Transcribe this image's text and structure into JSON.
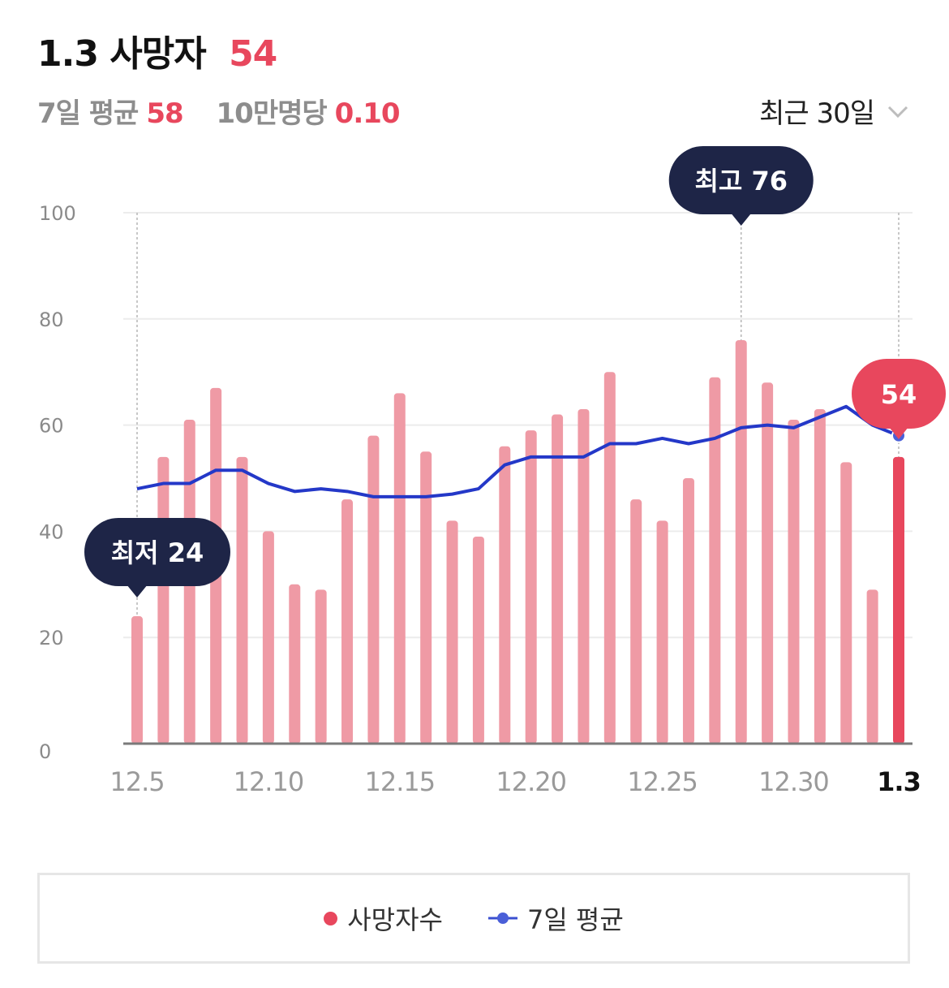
{
  "header": {
    "date": "1.3",
    "title_label": "사망자",
    "today_value": "54",
    "avg_label": "7일 평균",
    "avg_value": "58",
    "per100k_label": "10만명당",
    "per100k_value": "0.10"
  },
  "period_select": {
    "label": "최근 30일",
    "icon": "chevron-down-icon"
  },
  "colors": {
    "bar": "#ef9aa5",
    "bar_latest": "#e8475d",
    "avg_line": "#2438c8",
    "tooltip_bg": "#1e2547",
    "accent": "#e8475d"
  },
  "chart_data": {
    "type": "bar",
    "categories": [
      "12.5",
      "12.6",
      "12.7",
      "12.8",
      "12.9",
      "12.10",
      "12.11",
      "12.12",
      "12.13",
      "12.14",
      "12.15",
      "12.16",
      "12.17",
      "12.18",
      "12.19",
      "12.20",
      "12.21",
      "12.22",
      "12.23",
      "12.24",
      "12.25",
      "12.26",
      "12.27",
      "12.28",
      "12.29",
      "12.30",
      "12.31",
      "1.1",
      "1.2",
      "1.3"
    ],
    "x_tick_labels": [
      "12.5",
      "12.10",
      "12.15",
      "12.20",
      "12.25",
      "12.30",
      "1.3"
    ],
    "series": [
      {
        "name": "사망자수",
        "type": "bar",
        "values": [
          24,
          54,
          61,
          67,
          54,
          40,
          30,
          29,
          46,
          58,
          66,
          55,
          42,
          39,
          56,
          59,
          62,
          63,
          70,
          46,
          42,
          50,
          69,
          76,
          68,
          61,
          63,
          53,
          29,
          54
        ]
      },
      {
        "name": "7일 평균",
        "type": "line",
        "values": [
          48,
          49,
          49,
          51.5,
          51.5,
          49,
          47.5,
          48,
          47.5,
          46.5,
          46.5,
          46.5,
          47,
          48,
          52.5,
          54,
          54,
          54,
          56.5,
          56.5,
          57.5,
          56.5,
          57.5,
          59.5,
          60,
          59.5,
          61.5,
          63.5,
          60,
          58
        ]
      }
    ],
    "ylim": [
      0,
      100
    ],
    "y_ticks": [
      0,
      20,
      40,
      60,
      80,
      100
    ],
    "annotations": [
      {
        "label": "최저 24",
        "category": "12.5"
      },
      {
        "label": "최고 76",
        "category": "12.28"
      },
      {
        "label": "54",
        "category": "1.3"
      }
    ],
    "grid": true,
    "legend": {
      "position": "bottom",
      "items": [
        "사망자수",
        "7일 평균"
      ]
    }
  }
}
